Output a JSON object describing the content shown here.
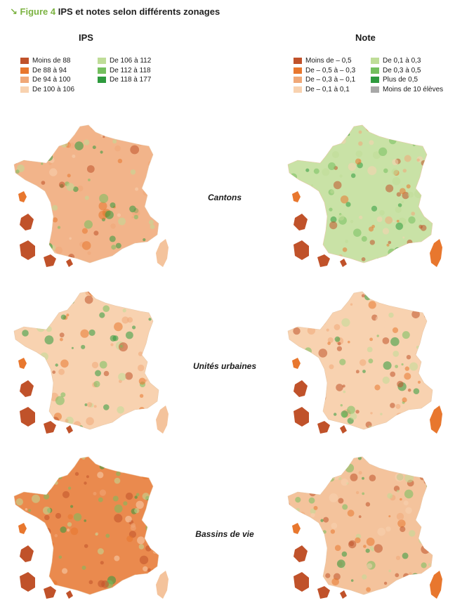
{
  "figure": {
    "arrow": "↘",
    "label": "Figure 4",
    "title": "IPS et notes selon différents zonages"
  },
  "columns": {
    "ips_title": "IPS",
    "note_title": "Note"
  },
  "legend_ips": [
    {
      "label": "Moins de 88",
      "color": "#c0522a"
    },
    {
      "label": "De 88 à 94",
      "color": "#e8772e"
    },
    {
      "label": "De 94 à 100",
      "color": "#f0a878"
    },
    {
      "label": "De 100 à 106",
      "color": "#f8d2b0"
    },
    {
      "label": "De 106 à 112",
      "color": "#bfdd98"
    },
    {
      "label": "De 112 à 118",
      "color": "#74bf5e"
    },
    {
      "label": "De 118 à 177",
      "color": "#2e9a3e"
    }
  ],
  "legend_note": [
    {
      "label": "Moins de – 0,5",
      "color": "#c0522a"
    },
    {
      "label": "De – 0,5 à – 0,3",
      "color": "#e8772e"
    },
    {
      "label": "De – 0,3 à – 0,1",
      "color": "#f0a878"
    },
    {
      "label": "De – 0,1 à 0,1",
      "color": "#f8d2b0"
    },
    {
      "label": "De 0,1 à 0,3",
      "color": "#bfdd98"
    },
    {
      "label": "De 0,3 à 0,5",
      "color": "#74bf5e"
    },
    {
      "label": "Plus de 0,5",
      "color": "#2e9a3e"
    },
    {
      "label": "Moins de 10 élèves",
      "color": "#a8a8a8"
    }
  ],
  "rows": [
    {
      "label": "Cantons",
      "ips_base": "#f2b48a",
      "note_base": "#c9e2a6",
      "dom": "#c0522a"
    },
    {
      "label": "Unités urbaines",
      "ips_base": "#f8d2b0",
      "note_base": "#f8d2b0",
      "dom": "#c0522a"
    },
    {
      "label": "Bassins de vie",
      "ips_base": "#ea8a4e",
      "note_base": "#f4c39c",
      "dom": "#c0522a"
    }
  ]
}
